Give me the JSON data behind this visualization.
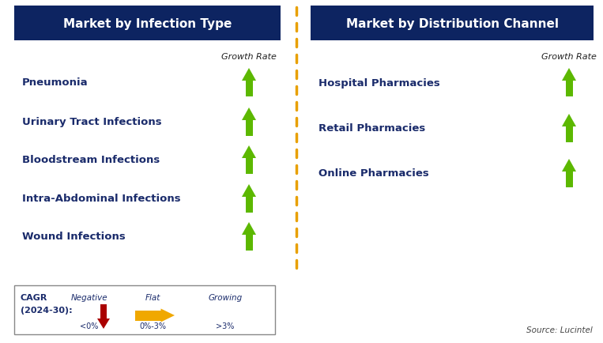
{
  "title_left": "Market by Infection Type",
  "title_right": "Market by Distribution Channel",
  "title_bg_color": "#0d2461",
  "title_text_color": "#ffffff",
  "left_items": [
    "Pneumonia",
    "Urinary Tract Infections",
    "Bloodstream Infections",
    "Intra-Abdominal Infections",
    "Wound Infections"
  ],
  "right_items": [
    "Hospital Pharmacies",
    "Retail Pharmacies",
    "Online Pharmacies"
  ],
  "item_text_color": "#1a2b6b",
  "growth_rate_label": "Growth Rate",
  "growth_rate_color": "#222222",
  "arrow_color_green": "#5cb800",
  "arrow_color_red": "#aa0000",
  "arrow_color_yellow": "#f0a800",
  "divider_color": "#e8a000",
  "background_color": "#ffffff",
  "legend_cagr_line1": "CAGR",
  "legend_cagr_line2": "(2024-30):",
  "legend_negative": "Negative",
  "legend_negative_sub": "<0%",
  "legend_flat": "Flat",
  "legend_flat_sub": "0%-3%",
  "legend_growing": "Growing",
  "legend_growing_sub": ">3%",
  "source_text": "Source: Lucintel"
}
